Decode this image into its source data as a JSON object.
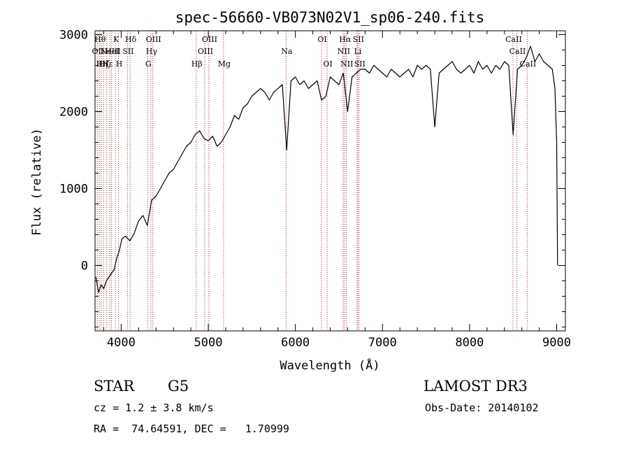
{
  "chart_data": {
    "type": "line",
    "title": "spec-56660-VB073N02V1_sp06-240.fits",
    "xlabel": "Wavelength (Å)",
    "ylabel": "Flux (relative)",
    "xlim": [
      3700,
      9100
    ],
    "ylim": [
      -850,
      3050
    ],
    "x_ticks": [
      4000,
      5000,
      6000,
      7000,
      8000,
      9000
    ],
    "x_tick_labels": [
      "4000",
      "5000",
      "6000",
      "7000",
      "8000",
      "9000"
    ],
    "y_ticks": [
      0,
      1000,
      2000,
      3000
    ],
    "y_tick_labels": [
      "0",
      "1000",
      "2000",
      "3000"
    ],
    "grid": false,
    "series": [
      {
        "name": "spectrum",
        "color": "#000000",
        "x": [
          3710,
          3740,
          3770,
          3800,
          3830,
          3860,
          3890,
          3920,
          3950,
          3980,
          4010,
          4050,
          4100,
          4150,
          4200,
          4250,
          4300,
          4350,
          4400,
          4450,
          4500,
          4550,
          4600,
          4650,
          4700,
          4750,
          4800,
          4850,
          4900,
          4950,
          5000,
          5050,
          5100,
          5150,
          5200,
          5250,
          5300,
          5350,
          5400,
          5450,
          5500,
          5550,
          5600,
          5650,
          5700,
          5750,
          5800,
          5850,
          5900,
          5950,
          6000,
          6050,
          6100,
          6150,
          6200,
          6250,
          6300,
          6350,
          6400,
          6450,
          6500,
          6550,
          6600,
          6650,
          6700,
          6750,
          6800,
          6850,
          6900,
          6950,
          7000,
          7050,
          7100,
          7150,
          7200,
          7250,
          7300,
          7350,
          7400,
          7450,
          7500,
          7550,
          7600,
          7650,
          7700,
          7750,
          7800,
          7850,
          7900,
          7950,
          8000,
          8050,
          8100,
          8150,
          8200,
          8250,
          8300,
          8350,
          8400,
          8450,
          8500,
          8550,
          8600,
          8650,
          8700,
          8750,
          8800,
          8850,
          8900,
          8950,
          8980,
          9000,
          9010
        ],
        "y": [
          -150,
          -350,
          -250,
          -300,
          -200,
          -150,
          -100,
          -50,
          100,
          200,
          350,
          380,
          320,
          420,
          580,
          650,
          520,
          850,
          900,
          1000,
          1100,
          1200,
          1250,
          1350,
          1450,
          1550,
          1600,
          1700,
          1750,
          1650,
          1620,
          1680,
          1550,
          1600,
          1700,
          1800,
          1950,
          1900,
          2050,
          2100,
          2200,
          2250,
          2300,
          2250,
          2150,
          2250,
          2300,
          2350,
          1500,
          2400,
          2450,
          2350,
          2400,
          2300,
          2350,
          2400,
          2150,
          2200,
          2450,
          2400,
          2350,
          2500,
          2000,
          2450,
          2500,
          2550,
          2550,
          2500,
          2600,
          2550,
          2500,
          2450,
          2550,
          2500,
          2450,
          2500,
          2550,
          2450,
          2600,
          2550,
          2600,
          2550,
          1800,
          2500,
          2550,
          2600,
          2650,
          2550,
          2500,
          2550,
          2600,
          2500,
          2650,
          2550,
          2600,
          2500,
          2600,
          2550,
          2650,
          2600,
          1700,
          2550,
          2600,
          2700,
          2850,
          2650,
          2750,
          2650,
          2600,
          2550,
          2300,
          1600,
          0
        ]
      }
    ],
    "line_markers": [
      {
        "wavelength": 3727,
        "label": "OII",
        "row": 2
      },
      {
        "wavelength": 3750,
        "label": "Hθ",
        "row": 1
      },
      {
        "wavelength": 3771,
        "label": "Hη",
        "row": 3
      },
      {
        "wavelength": 3798,
        "label": "Hζ",
        "row": 3
      },
      {
        "wavelength": 3835,
        "label": "Hε",
        "row": 3
      },
      {
        "wavelength": 3869,
        "label": "NeIII",
        "row": 2
      },
      {
        "wavelength": 3889,
        "label": "HeI",
        "row": 2
      },
      {
        "wavelength": 3934,
        "label": "K",
        "row": 1
      },
      {
        "wavelength": 3969,
        "label": "H",
        "row": 3
      },
      {
        "wavelength": 4072,
        "label": "SII",
        "row": 2
      },
      {
        "wavelength": 4102,
        "label": "Hδ",
        "row": 1
      },
      {
        "wavelength": 4304,
        "label": "G",
        "row": 3
      },
      {
        "wavelength": 4341,
        "label": "Hγ",
        "row": 2
      },
      {
        "wavelength": 4363,
        "label": "OIII",
        "row": 1
      },
      {
        "wavelength": 4861,
        "label": "Hβ",
        "row": 3
      },
      {
        "wavelength": 4959,
        "label": "OIII",
        "row": 2
      },
      {
        "wavelength": 5007,
        "label": "OIII",
        "row": 1
      },
      {
        "wavelength": 5175,
        "label": "Mg",
        "row": 3
      },
      {
        "wavelength": 5893,
        "label": "Na",
        "row": 2
      },
      {
        "wavelength": 6300,
        "label": "OI",
        "row": 1
      },
      {
        "wavelength": 6364,
        "label": "OI",
        "row": 3
      },
      {
        "wavelength": 6548,
        "label": "NII",
        "row": 2
      },
      {
        "wavelength": 6563,
        "label": "Hα",
        "row": 1
      },
      {
        "wavelength": 6583,
        "label": "NII",
        "row": 3
      },
      {
        "wavelength": 6708,
        "label": "Li",
        "row": 2
      },
      {
        "wavelength": 6716,
        "label": "SII",
        "row": 1
      },
      {
        "wavelength": 6731,
        "label": "SII",
        "row": 3
      },
      {
        "wavelength": 8498,
        "label": "CaII",
        "row": 1
      },
      {
        "wavelength": 8542,
        "label": "CaII",
        "row": 2
      },
      {
        "wavelength": 8662,
        "label": "CaII",
        "row": 3
      }
    ],
    "marker_color": "#b22222"
  },
  "info": {
    "object_class": "STAR",
    "subclass": "G5",
    "survey": "LAMOST DR3",
    "cz": "cz = 1.2 ± 3.8 km/s",
    "obs_date": "Obs-Date: 20140102",
    "coords": "RA =  74.64591, DEC =   1.70999"
  }
}
